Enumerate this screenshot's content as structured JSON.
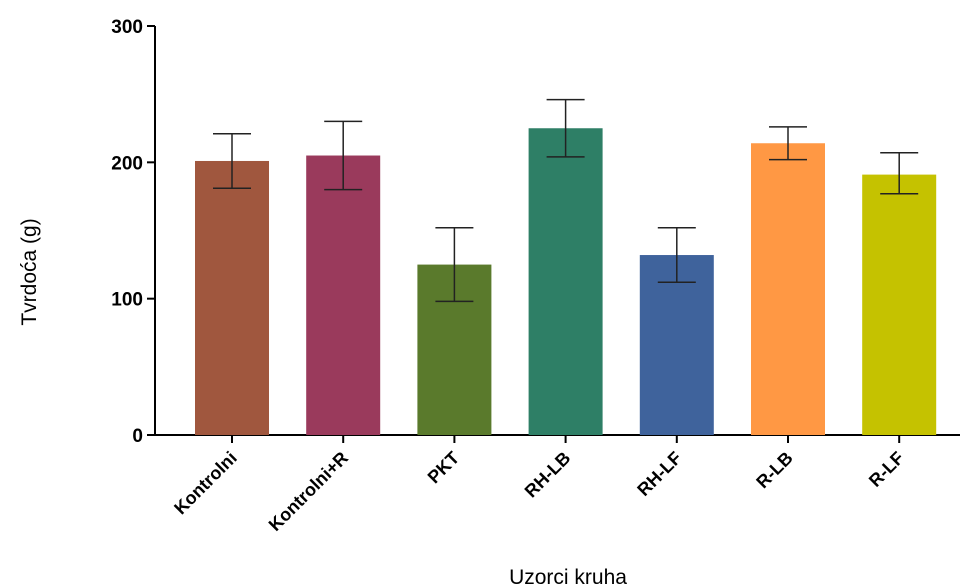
{
  "chart_data": {
    "type": "bar",
    "xlabel": "Uzorci kruha",
    "ylabel": "Tvrdoća (g)",
    "ylim": [
      0,
      300
    ],
    "yticks": [
      0,
      100,
      200,
      300
    ],
    "categories": [
      "Kontrolni",
      "Kontrolni+R",
      "PKT",
      "RH-LB",
      "RH-LF",
      "R-LB",
      "R-LF"
    ],
    "values": [
      201,
      205,
      125,
      225,
      132,
      214,
      191
    ],
    "error_low": [
      181,
      180,
      98,
      204,
      112,
      202,
      177
    ],
    "error_high": [
      221,
      230,
      152,
      246,
      152,
      226,
      207
    ],
    "colors": [
      "#A0573E",
      "#9A3A5C",
      "#5A7A2C",
      "#2E7F66",
      "#3F639C",
      "#FF9844",
      "#C5C200"
    ],
    "grid": false,
    "legend": "none"
  }
}
